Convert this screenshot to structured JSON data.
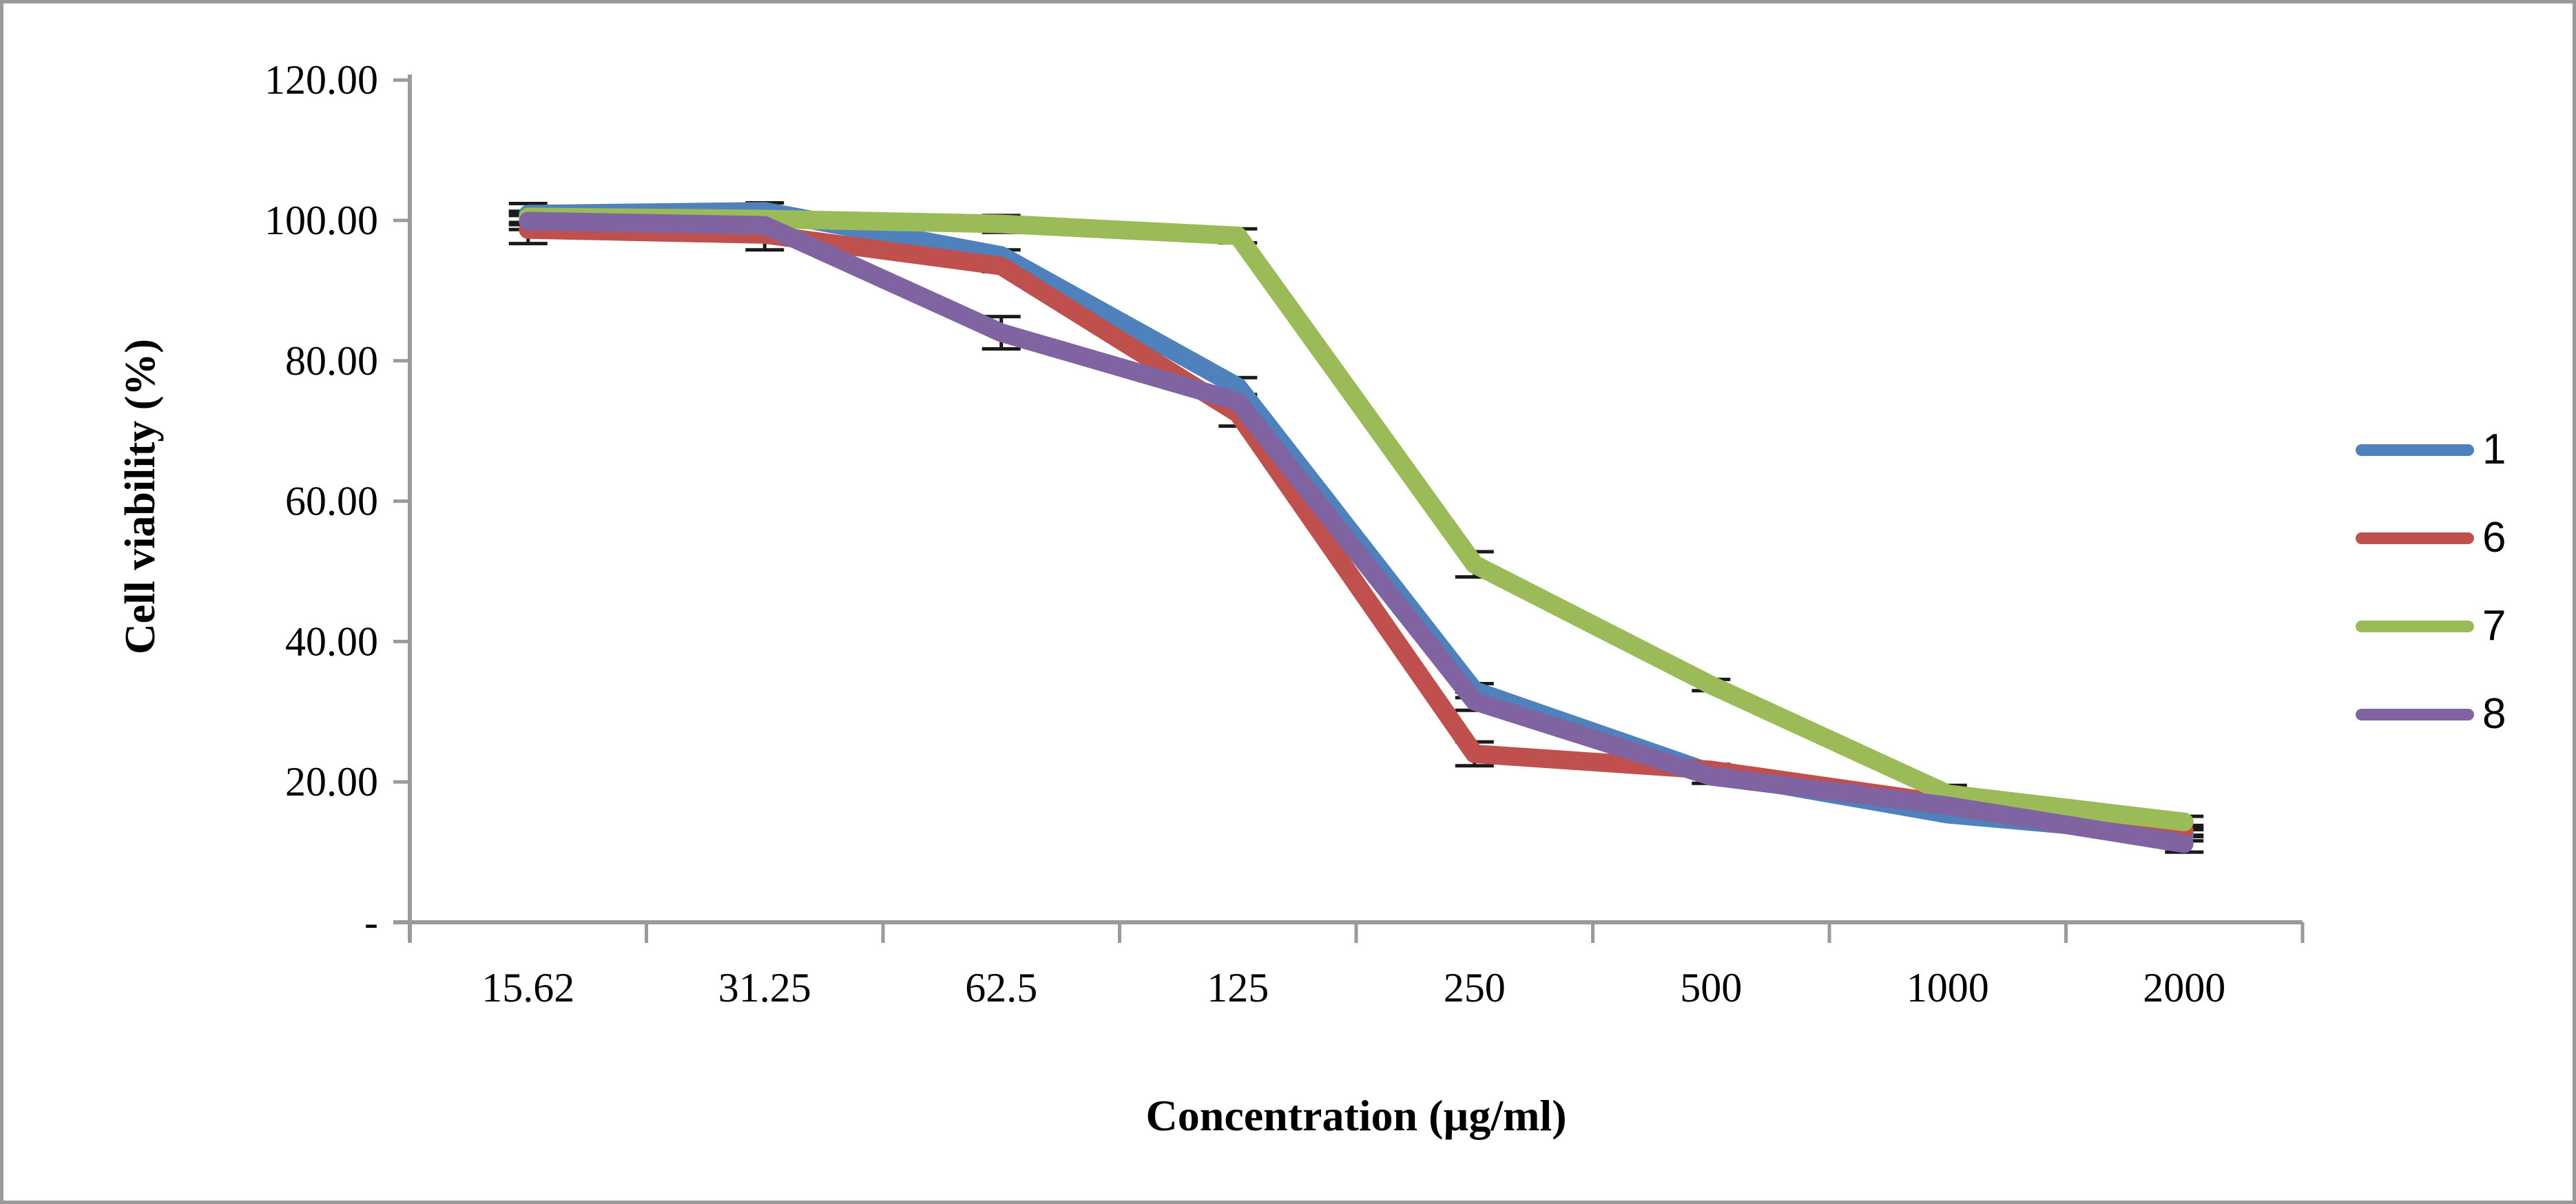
{
  "figure": {
    "background": "#ffffff",
    "border_color": "#9a9a9a"
  },
  "chart_data": {
    "type": "line",
    "title": "",
    "xlabel": "Concentration (µg/ml)",
    "ylabel": "Cell viability (%)",
    "categories": [
      "15.62",
      "31.25",
      "62.5",
      "125",
      "250",
      "500",
      "1000",
      "2000"
    ],
    "y_ticks": [
      {
        "label": "120.00",
        "value": 120
      },
      {
        "label": "100.00",
        "value": 100
      },
      {
        "label": "80.00",
        "value": 80
      },
      {
        "label": "60.00",
        "value": 60
      },
      {
        "label": "40.00",
        "value": 40
      },
      {
        "label": "20.00",
        "value": 20
      },
      {
        "label": "-",
        "value": 0
      }
    ],
    "ylim": [
      0,
      120
    ],
    "grid": false,
    "legend_position": "right",
    "error_bars": true,
    "axis_color": "#9a9a9a",
    "error_bar_color": "#1a1a1a",
    "series": [
      {
        "name": "1",
        "color": "#4F81BD",
        "values": [
          100.9,
          101.3,
          95.0,
          76.3,
          33.0,
          21.3,
          15.4,
          12.4
        ],
        "errors": [
          1.5,
          1.2,
          0.8,
          1.3,
          1.0,
          0.8,
          0.5,
          0.8
        ]
      },
      {
        "name": "6",
        "color": "#C0504D",
        "values": [
          98.7,
          98.0,
          93.5,
          72.5,
          24.0,
          21.7,
          16.9,
          13.0
        ],
        "errors": [
          2.0,
          2.2,
          0.8,
          1.8,
          1.7,
          0.8,
          0.5,
          0.8
        ]
      },
      {
        "name": "7",
        "color": "#9BBB59",
        "values": [
          100.5,
          100.2,
          99.5,
          97.8,
          51.0,
          33.8,
          18.3,
          14.3
        ],
        "errors": [
          0.8,
          1.0,
          1.2,
          1.0,
          1.8,
          0.8,
          1.2,
          0.8
        ]
      },
      {
        "name": "8",
        "color": "#8064A2",
        "values": [
          99.9,
          99.3,
          84.0,
          74.2,
          31.5,
          20.8,
          16.6,
          11.2
        ],
        "errors": [
          1.2,
          1.0,
          2.3,
          1.0,
          1.3,
          1.0,
          0.5,
          1.2
        ]
      }
    ]
  }
}
